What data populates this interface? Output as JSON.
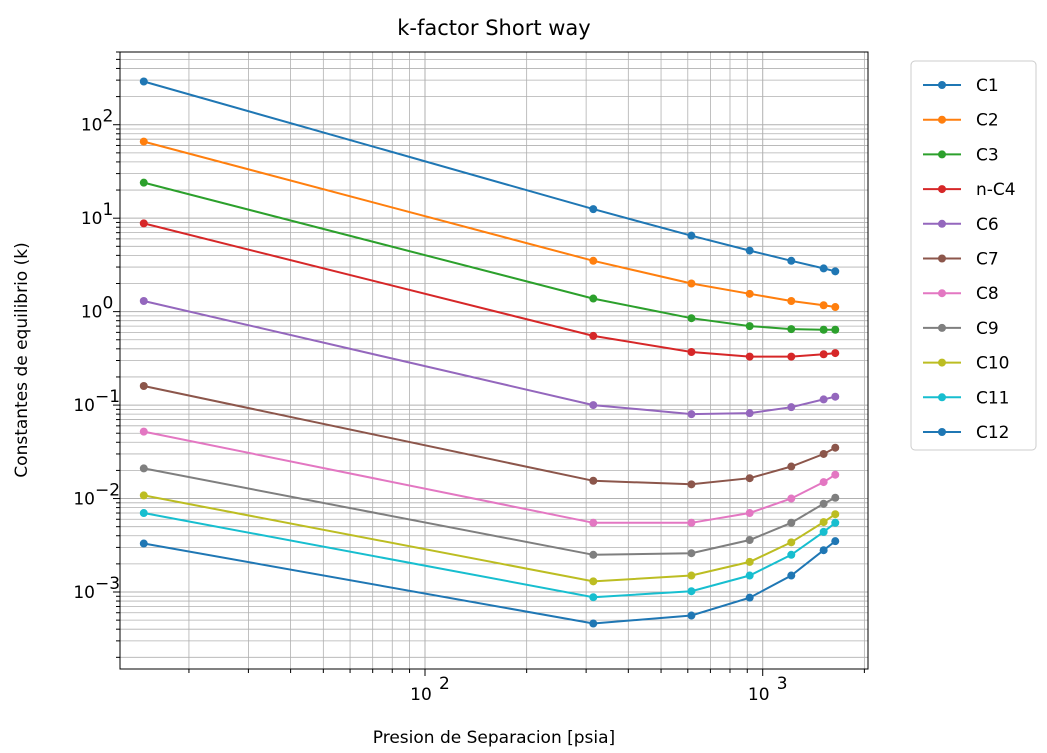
{
  "chart_data": {
    "type": "line",
    "title": "k-factor Short way",
    "xlabel": "Presion de Separacion [psia]",
    "ylabel": "Constantes de equilibrio (k)",
    "xscale": "log",
    "yscale": "log",
    "xlim": [
      12.5,
      2050
    ],
    "ylim": [
      0.00015,
      600
    ],
    "grid": "major and minor",
    "legend_position": "outside right",
    "x_tick_labels": [
      {
        "value": 100,
        "base": "10",
        "exp": "2"
      },
      {
        "value": 1000,
        "base": "10",
        "exp": "3"
      }
    ],
    "y_tick_labels": [
      {
        "value": 0.001,
        "base": "10",
        "exp": "−3"
      },
      {
        "value": 0.01,
        "base": "10",
        "exp": "−2"
      },
      {
        "value": 0.1,
        "base": "10",
        "exp": "−1"
      },
      {
        "value": 1,
        "base": "10",
        "exp": "0"
      },
      {
        "value": 10,
        "base": "10",
        "exp": "1"
      },
      {
        "value": 100,
        "base": "10",
        "exp": "2"
      }
    ],
    "x": [
      14.7,
      315,
      615,
      915,
      1215,
      1515,
      1640
    ],
    "series": [
      {
        "name": "C1",
        "color": "#1f77b4",
        "values": [
          290,
          12.5,
          6.5,
          4.5,
          3.5,
          2.9,
          2.7
        ]
      },
      {
        "name": "C2",
        "color": "#ff7f0e",
        "values": [
          66,
          3.5,
          2.0,
          1.55,
          1.3,
          1.17,
          1.12
        ]
      },
      {
        "name": "C3",
        "color": "#2ca02c",
        "values": [
          24,
          1.38,
          0.85,
          0.7,
          0.65,
          0.64,
          0.64
        ]
      },
      {
        "name": "n-C4",
        "color": "#d62728",
        "values": [
          8.8,
          0.55,
          0.37,
          0.33,
          0.33,
          0.35,
          0.36
        ]
      },
      {
        "name": "C6",
        "color": "#9467bd",
        "values": [
          1.3,
          0.1,
          0.08,
          0.082,
          0.095,
          0.115,
          0.123
        ]
      },
      {
        "name": "C7",
        "color": "#8c564b",
        "values": [
          0.16,
          0.0155,
          0.0142,
          0.0165,
          0.022,
          0.03,
          0.035
        ]
      },
      {
        "name": "C8",
        "color": "#e377c2",
        "values": [
          0.052,
          0.0055,
          0.0055,
          0.007,
          0.01,
          0.015,
          0.018
        ]
      },
      {
        "name": "C9",
        "color": "#7f7f7f",
        "values": [
          0.021,
          0.0025,
          0.0026,
          0.0036,
          0.0055,
          0.0088,
          0.0102
        ]
      },
      {
        "name": "C10",
        "color": "#bcbd22",
        "values": [
          0.0108,
          0.0013,
          0.0015,
          0.0021,
          0.0034,
          0.0056,
          0.0068
        ]
      },
      {
        "name": "C11",
        "color": "#17becf",
        "values": [
          0.007,
          0.00088,
          0.00102,
          0.0015,
          0.0025,
          0.0044,
          0.0055
        ]
      },
      {
        "name": "C12",
        "color": "#1f77b4",
        "values": [
          0.0033,
          0.00046,
          0.00056,
          0.00087,
          0.0015,
          0.0028,
          0.0035
        ]
      }
    ]
  }
}
